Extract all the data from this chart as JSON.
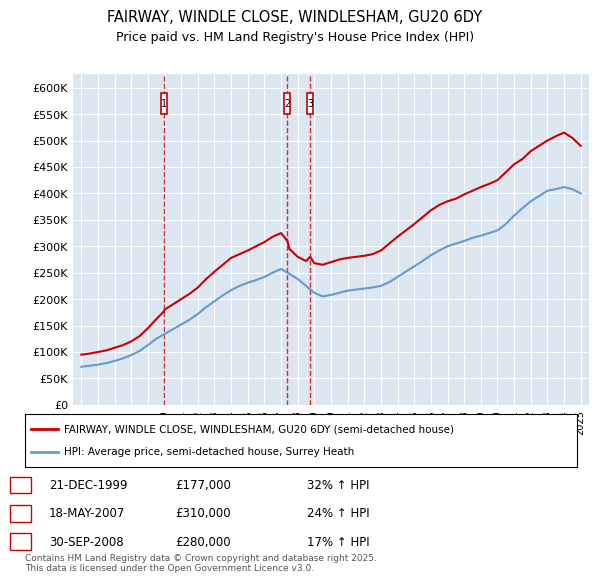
{
  "title": "FAIRWAY, WINDLE CLOSE, WINDLESHAM, GU20 6DY",
  "subtitle": "Price paid vs. HM Land Registry's House Price Index (HPI)",
  "bg_color": "#dce6f1",
  "plot_bg_color": "#dce6f1",
  "red_color": "#cc0000",
  "blue_color": "#6699cc",
  "ylim": [
    0,
    625000
  ],
  "yticks": [
    0,
    50000,
    100000,
    150000,
    200000,
    250000,
    300000,
    350000,
    400000,
    450000,
    500000,
    550000,
    600000
  ],
  "xlim_start": 1994.5,
  "xlim_end": 2025.5,
  "xticks": [
    1995,
    1996,
    1997,
    1998,
    1999,
    2000,
    2001,
    2002,
    2003,
    2004,
    2005,
    2006,
    2007,
    2008,
    2009,
    2010,
    2011,
    2012,
    2013,
    2014,
    2015,
    2016,
    2017,
    2018,
    2019,
    2020,
    2021,
    2022,
    2023,
    2024,
    2025
  ],
  "sale_dates": [
    1999.97,
    2007.38,
    2008.75
  ],
  "sale_prices": [
    177000,
    310000,
    280000
  ],
  "sale_labels": [
    "1",
    "2",
    "3"
  ],
  "legend_label_red": "FAIRWAY, WINDLE CLOSE, WINDLESHAM, GU20 6DY (semi-detached house)",
  "legend_label_blue": "HPI: Average price, semi-detached house, Surrey Heath",
  "table_entries": [
    {
      "num": "1",
      "date": "21-DEC-1999",
      "price": "£177,000",
      "hpi": "32% ↑ HPI"
    },
    {
      "num": "2",
      "date": "18-MAY-2007",
      "price": "£310,000",
      "hpi": "24% ↑ HPI"
    },
    {
      "num": "3",
      "date": "30-SEP-2008",
      "price": "£280,000",
      "hpi": "17% ↑ HPI"
    }
  ],
  "footer": "Contains HM Land Registry data © Crown copyright and database right 2025.\nThis data is licensed under the Open Government Licence v3.0.",
  "red_data": {
    "x": [
      1995.0,
      1995.5,
      1996.0,
      1996.5,
      1997.0,
      1997.5,
      1998.0,
      1998.5,
      1999.0,
      1999.5,
      1999.97,
      2000.0,
      2000.5,
      2001.0,
      2001.5,
      2002.0,
      2002.5,
      2003.0,
      2003.5,
      2004.0,
      2004.5,
      2005.0,
      2005.5,
      2006.0,
      2006.5,
      2007.0,
      2007.38,
      2007.5,
      2008.0,
      2008.5,
      2008.75,
      2009.0,
      2009.5,
      2010.0,
      2010.5,
      2011.0,
      2011.5,
      2012.0,
      2012.5,
      2013.0,
      2013.5,
      2014.0,
      2014.5,
      2015.0,
      2015.5,
      2016.0,
      2016.5,
      2017.0,
      2017.5,
      2018.0,
      2018.5,
      2019.0,
      2019.5,
      2020.0,
      2020.5,
      2021.0,
      2021.5,
      2022.0,
      2022.5,
      2023.0,
      2023.5,
      2024.0,
      2024.5,
      2025.0
    ],
    "y": [
      95000,
      97000,
      100000,
      103000,
      108000,
      113000,
      120000,
      130000,
      145000,
      162000,
      177000,
      180000,
      190000,
      200000,
      210000,
      222000,
      238000,
      252000,
      265000,
      278000,
      285000,
      292000,
      300000,
      308000,
      318000,
      325000,
      310000,
      295000,
      280000,
      272000,
      280000,
      268000,
      265000,
      270000,
      275000,
      278000,
      280000,
      282000,
      285000,
      292000,
      305000,
      318000,
      330000,
      342000,
      355000,
      368000,
      378000,
      385000,
      390000,
      398000,
      405000,
      412000,
      418000,
      425000,
      440000,
      455000,
      465000,
      480000,
      490000,
      500000,
      508000,
      515000,
      505000,
      490000
    ]
  },
  "blue_data": {
    "x": [
      1995.0,
      1995.5,
      1996.0,
      1996.5,
      1997.0,
      1997.5,
      1998.0,
      1998.5,
      1999.0,
      1999.5,
      2000.0,
      2000.5,
      2001.0,
      2001.5,
      2002.0,
      2002.5,
      2003.0,
      2003.5,
      2004.0,
      2004.5,
      2005.0,
      2005.5,
      2006.0,
      2006.5,
      2007.0,
      2007.5,
      2008.0,
      2008.5,
      2009.0,
      2009.5,
      2010.0,
      2010.5,
      2011.0,
      2011.5,
      2012.0,
      2012.5,
      2013.0,
      2013.5,
      2014.0,
      2014.5,
      2015.0,
      2015.5,
      2016.0,
      2016.5,
      2017.0,
      2017.5,
      2018.0,
      2018.5,
      2019.0,
      2019.5,
      2020.0,
      2020.5,
      2021.0,
      2021.5,
      2022.0,
      2022.5,
      2023.0,
      2023.5,
      2024.0,
      2024.5,
      2025.0
    ],
    "y": [
      72000,
      74000,
      76000,
      79000,
      83000,
      88000,
      94000,
      102000,
      113000,
      125000,
      134000,
      143000,
      152000,
      161000,
      172000,
      185000,
      196000,
      207000,
      217000,
      225000,
      231000,
      236000,
      242000,
      250000,
      257000,
      248000,
      238000,
      225000,
      212000,
      205000,
      208000,
      212000,
      216000,
      218000,
      220000,
      222000,
      225000,
      232000,
      242000,
      252000,
      262000,
      272000,
      283000,
      292000,
      300000,
      305000,
      310000,
      316000,
      320000,
      325000,
      330000,
      342000,
      358000,
      372000,
      385000,
      395000,
      405000,
      408000,
      412000,
      408000,
      400000
    ]
  }
}
